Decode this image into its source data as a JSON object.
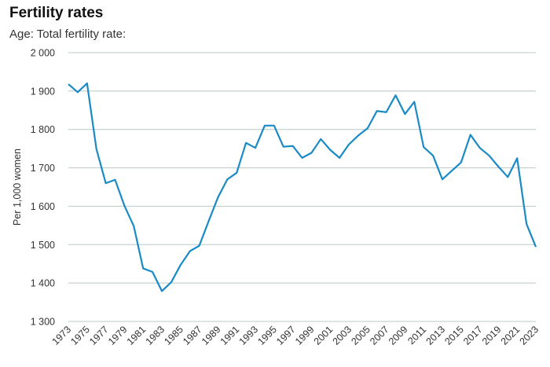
{
  "title": "Fertility rates",
  "subtitle": "Age: Total fertility rate:",
  "chart_data": {
    "type": "line",
    "title": "Fertility rates",
    "subtitle": "Age: Total fertility rate:",
    "ylabel": "Per 1,000 women",
    "xlabel": "",
    "ylim": [
      1300,
      2000
    ],
    "yticks": [
      1300,
      1400,
      1500,
      1600,
      1700,
      1800,
      1900,
      2000
    ],
    "ytick_labels": [
      "1 300",
      "1 400",
      "1 500",
      "1 600",
      "1 700",
      "1 800",
      "1 900",
      "2 000"
    ],
    "xtick_labels": [
      "1973",
      "1975",
      "1977",
      "1979",
      "1981",
      "1983",
      "1985",
      "1987",
      "1989",
      "1991",
      "1993",
      "1995",
      "1997",
      "1999",
      "2001",
      "2003",
      "2005",
      "2007",
      "2009",
      "2011",
      "2013",
      "2015",
      "2017",
      "2019",
      "2021",
      "2023"
    ],
    "grid": true,
    "line_color": "#1a8ac6",
    "grid_color": "#b9c8c8",
    "x": [
      1973,
      1974,
      1975,
      1976,
      1977,
      1978,
      1979,
      1980,
      1981,
      1982,
      1983,
      1984,
      1985,
      1986,
      1987,
      1988,
      1989,
      1990,
      1991,
      1992,
      1993,
      1994,
      1995,
      1996,
      1997,
      1998,
      1999,
      2000,
      2001,
      2002,
      2003,
      2004,
      2005,
      2006,
      2007,
      2008,
      2009,
      2010,
      2011,
      2012,
      2013,
      2014,
      2015,
      2016,
      2017,
      2018,
      2019,
      2020,
      2021,
      2022,
      2023
    ],
    "series": [
      {
        "values": [
          1918,
          1897,
          1920,
          1749,
          1660,
          1669,
          1601,
          1548,
          1438,
          1429,
          1379,
          1402,
          1447,
          1483,
          1497,
          1561,
          1623,
          1670,
          1687,
          1765,
          1752,
          1810,
          1810,
          1755,
          1757,
          1726,
          1739,
          1775,
          1747,
          1726,
          1761,
          1784,
          1803,
          1848,
          1845,
          1889,
          1840,
          1872,
          1754,
          1732,
          1670,
          1692,
          1714,
          1786,
          1752,
          1732,
          1703,
          1676,
          1725,
          1554,
          1494
        ]
      }
    ]
  }
}
